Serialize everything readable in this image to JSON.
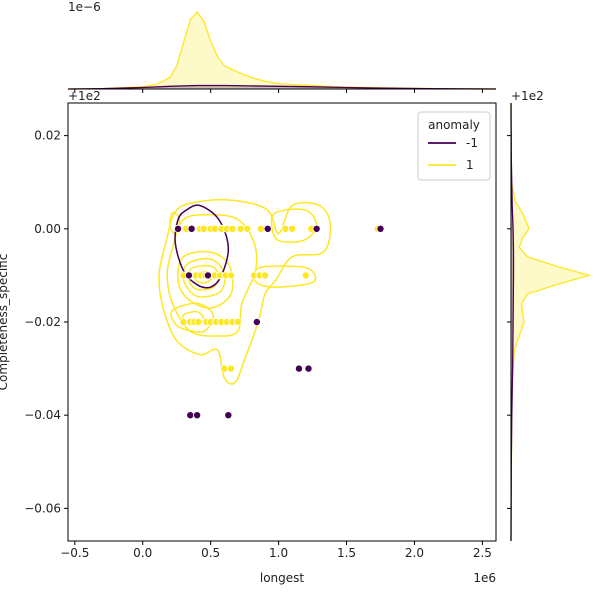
{
  "chart_data": {
    "type": "scatter",
    "subtype": "jointplot",
    "xlabel": "longest",
    "ylabel": "Completeness_specific",
    "x_multiplier_label": "1e6",
    "y_offset_label": "+1e2",
    "top_marginal_multiplier_label": "1e−6",
    "right_marginal_offset_label": "+1e2",
    "xlim": [
      -0.55,
      2.6
    ],
    "ylim": [
      -0.067,
      0.027
    ],
    "x_ticks": [
      -0.5,
      0.0,
      0.5,
      1.0,
      1.5,
      2.0,
      2.5
    ],
    "x_tick_labels": [
      "−0.5",
      "0.0",
      "0.5",
      "1.0",
      "1.5",
      "2.0",
      "2.5"
    ],
    "y_ticks": [
      0.02,
      0.0,
      -0.02,
      -0.04,
      -0.06
    ],
    "y_tick_labels": [
      "0.02",
      "0.00",
      "−0.02",
      "−0.04",
      "−0.06"
    ],
    "legend": {
      "title": "anomaly",
      "position": "top-right",
      "entries": [
        {
          "label": "-1",
          "color": "#440154"
        },
        {
          "label": "1",
          "color": "#fde725"
        }
      ]
    },
    "series": [
      {
        "name": "1",
        "color": "#fde725",
        "points": [
          [
            0.27,
            0
          ],
          [
            0.32,
            0
          ],
          [
            0.42,
            0
          ],
          [
            0.45,
            0
          ],
          [
            0.5,
            0
          ],
          [
            0.53,
            0
          ],
          [
            0.58,
            0
          ],
          [
            0.62,
            0
          ],
          [
            0.66,
            0
          ],
          [
            0.72,
            0
          ],
          [
            0.77,
            0
          ],
          [
            0.87,
            0
          ],
          [
            1.05,
            0
          ],
          [
            1.1,
            0
          ],
          [
            1.24,
            0
          ],
          [
            1.73,
            0
          ],
          [
            0.3,
            -0.01
          ],
          [
            0.35,
            -0.01
          ],
          [
            0.39,
            -0.01
          ],
          [
            0.43,
            -0.01
          ],
          [
            0.46,
            -0.01
          ],
          [
            0.53,
            -0.01
          ],
          [
            0.57,
            -0.01
          ],
          [
            0.61,
            -0.01
          ],
          [
            0.65,
            -0.01
          ],
          [
            0.82,
            -0.01
          ],
          [
            0.86,
            -0.01
          ],
          [
            0.9,
            -0.01
          ],
          [
            1.2,
            -0.01
          ],
          [
            0.3,
            -0.02
          ],
          [
            0.35,
            -0.02
          ],
          [
            0.38,
            -0.02
          ],
          [
            0.41,
            -0.02
          ],
          [
            0.47,
            -0.02
          ],
          [
            0.5,
            -0.02
          ],
          [
            0.54,
            -0.02
          ],
          [
            0.58,
            -0.02
          ],
          [
            0.62,
            -0.02
          ],
          [
            0.66,
            -0.02
          ],
          [
            0.7,
            -0.02
          ],
          [
            0.6,
            -0.03
          ],
          [
            0.65,
            -0.03
          ]
        ]
      },
      {
        "name": "-1",
        "color": "#440154",
        "points": [
          [
            0.26,
            0
          ],
          [
            0.36,
            0
          ],
          [
            0.92,
            0
          ],
          [
            1.28,
            0
          ],
          [
            1.75,
            0
          ],
          [
            0.34,
            -0.01
          ],
          [
            0.48,
            -0.01
          ],
          [
            0.84,
            -0.02
          ],
          [
            1.15,
            -0.03
          ],
          [
            1.22,
            -0.03
          ],
          [
            0.35,
            -0.04
          ],
          [
            0.4,
            -0.04
          ],
          [
            0.63,
            -0.04
          ]
        ]
      }
    ],
    "contours": [
      {
        "series": "1",
        "color": "#fde725",
        "levels": [
          [
            [
              0.17,
              -0.003
            ],
            [
              0.25,
              0.004
            ],
            [
              0.45,
              0.006
            ],
            [
              0.7,
              0.006
            ],
            [
              0.92,
              0.004
            ],
            [
              1.0,
              -0.001
            ],
            [
              1.1,
              0.005
            ],
            [
              1.3,
              0.005
            ],
            [
              1.38,
              0.001
            ],
            [
              1.33,
              -0.005
            ],
            [
              1.1,
              -0.006
            ],
            [
              0.98,
              -0.011
            ],
            [
              0.9,
              -0.014
            ],
            [
              0.85,
              -0.02
            ],
            [
              0.75,
              -0.028
            ],
            [
              0.68,
              -0.033
            ],
            [
              0.6,
              -0.032
            ],
            [
              0.55,
              -0.026
            ],
            [
              0.42,
              -0.027
            ],
            [
              0.25,
              -0.024
            ],
            [
              0.15,
              -0.017
            ],
            [
              0.12,
              -0.01
            ]
          ],
          [
            [
              0.22,
              -0.004
            ],
            [
              0.3,
              0.002
            ],
            [
              0.5,
              0.003
            ],
            [
              0.7,
              0.002
            ],
            [
              0.82,
              -0.003
            ],
            [
              0.83,
              -0.009
            ],
            [
              0.73,
              -0.016
            ],
            [
              0.7,
              -0.022
            ],
            [
              0.55,
              -0.023
            ],
            [
              0.35,
              -0.022
            ],
            [
              0.22,
              -0.016
            ],
            [
              0.18,
              -0.01
            ]
          ],
          [
            [
              0.3,
              -0.006
            ],
            [
              0.5,
              -0.005
            ],
            [
              0.64,
              -0.008
            ],
            [
              0.65,
              -0.014
            ],
            [
              0.5,
              -0.017
            ],
            [
              0.33,
              -0.015
            ],
            [
              0.26,
              -0.011
            ]
          ],
          [
            [
              0.33,
              -0.0075
            ],
            [
              0.5,
              -0.0065
            ],
            [
              0.6,
              -0.0095
            ],
            [
              0.57,
              -0.0135
            ],
            [
              0.4,
              -0.0145
            ],
            [
              0.3,
              -0.011
            ]
          ],
          [
            [
              0.36,
              -0.0085
            ],
            [
              0.5,
              -0.008
            ],
            [
              0.56,
              -0.01
            ],
            [
              0.52,
              -0.0125
            ],
            [
              0.4,
              -0.013
            ],
            [
              0.34,
              -0.011
            ]
          ],
          [
            [
              0.4,
              -0.0095
            ],
            [
              0.48,
              -0.0092
            ],
            [
              0.51,
              -0.0104
            ],
            [
              0.47,
              -0.0115
            ],
            [
              0.41,
              -0.0114
            ],
            [
              0.38,
              -0.0105
            ]
          ],
          [
            [
              0.22,
              -0.0175
            ],
            [
              0.4,
              -0.016
            ],
            [
              0.52,
              -0.0185
            ],
            [
              0.45,
              -0.022
            ],
            [
              0.3,
              -0.0215
            ],
            [
              0.23,
              -0.02
            ]
          ],
          [
            [
              0.3,
              -0.0185
            ],
            [
              0.4,
              -0.0178
            ],
            [
              0.45,
              -0.0195
            ],
            [
              0.38,
              -0.0205
            ],
            [
              0.31,
              -0.02
            ]
          ],
          [
            [
              0.22,
              0.0035
            ],
            [
              0.27,
              0.002
            ],
            [
              0.24,
              -0.001
            ],
            [
              0.2,
              0.0005
            ]
          ],
          [
            [
              0.85,
              -0.0085
            ],
            [
              1.0,
              -0.008
            ],
            [
              1.22,
              -0.0085
            ],
            [
              1.25,
              -0.0115
            ],
            [
              0.95,
              -0.0125
            ],
            [
              0.82,
              -0.011
            ]
          ],
          [
            [
              0.98,
              0.0035
            ],
            [
              1.2,
              0.004
            ],
            [
              1.28,
              0.0005
            ],
            [
              1.18,
              -0.0025
            ],
            [
              1.0,
              -0.0025
            ],
            [
              0.95,
              0.0005
            ]
          ]
        ]
      },
      {
        "series": "-1",
        "color": "#440154",
        "levels": [
          [
            [
              0.32,
              0.004
            ],
            [
              0.42,
              0.005
            ],
            [
              0.56,
              0.002
            ],
            [
              0.63,
              -0.004
            ],
            [
              0.58,
              -0.01
            ],
            [
              0.5,
              -0.0125
            ],
            [
              0.4,
              -0.012
            ],
            [
              0.3,
              -0.009
            ],
            [
              0.24,
              -0.003
            ],
            [
              0.26,
              0.002
            ]
          ]
        ]
      }
    ],
    "top_marginal": {
      "series": [
        {
          "name": "1",
          "color": "#fde725",
          "x": [
            -0.55,
            -0.3,
            0.0,
            0.1,
            0.2,
            0.25,
            0.3,
            0.35,
            0.4,
            0.45,
            0.5,
            0.55,
            0.6,
            0.7,
            0.8,
            0.9,
            1.0,
            1.1,
            1.2,
            1.3,
            1.4,
            1.5,
            1.7,
            1.9,
            2.2,
            2.6
          ],
          "density": [
            0,
            0.005,
            0.03,
            0.06,
            0.15,
            0.3,
            0.6,
            0.9,
            1.0,
            0.88,
            0.62,
            0.42,
            0.3,
            0.22,
            0.15,
            0.1,
            0.07,
            0.06,
            0.05,
            0.04,
            0.03,
            0.025,
            0.02,
            0.01,
            0.004,
            0
          ]
        },
        {
          "name": "-1",
          "color": "#440154",
          "x": [
            -0.55,
            -0.3,
            0.0,
            0.2,
            0.4,
            0.6,
            0.8,
            1.0,
            1.2,
            1.5,
            1.8,
            2.1,
            2.6
          ],
          "density": [
            0,
            0.005,
            0.02,
            0.035,
            0.045,
            0.045,
            0.04,
            0.035,
            0.03,
            0.02,
            0.01,
            0.004,
            0
          ]
        }
      ]
    },
    "right_marginal": {
      "series": [
        {
          "name": "1",
          "color": "#fde725",
          "y": [
            0.027,
            0.01,
            0.006,
            0.003,
            0.0,
            -0.002,
            -0.004,
            -0.006,
            -0.008,
            -0.01,
            -0.012,
            -0.014,
            -0.016,
            -0.018,
            -0.02,
            -0.022,
            -0.026,
            -0.035,
            -0.067
          ],
          "density": [
            0,
            0.005,
            0.05,
            0.15,
            0.22,
            0.14,
            0.1,
            0.2,
            0.55,
            0.95,
            0.55,
            0.2,
            0.13,
            0.14,
            0.16,
            0.12,
            0.04,
            0.01,
            0
          ]
        },
        {
          "name": "-1",
          "color": "#440154",
          "y": [
            0.027,
            0.015,
            0.005,
            0.0,
            -0.005,
            -0.01,
            -0.02,
            -0.03,
            -0.04,
            -0.05,
            -0.067
          ],
          "density": [
            0,
            0.004,
            0.015,
            0.025,
            0.03,
            0.03,
            0.025,
            0.02,
            0.01,
            0.004,
            0
          ]
        }
      ]
    }
  }
}
